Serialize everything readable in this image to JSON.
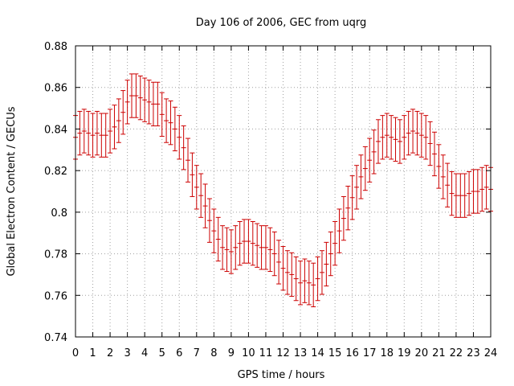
{
  "chart_data": {
    "type": "line",
    "title": "Day 106 of 2006, GEC from uqrg",
    "xlabel": "GPS time / hours",
    "ylabel": "Global Electron Content / GECUs",
    "xlim": [
      0,
      24
    ],
    "ylim": [
      0.74,
      0.88
    ],
    "x_ticks": [
      0,
      1,
      2,
      3,
      4,
      5,
      6,
      7,
      8,
      9,
      10,
      11,
      12,
      13,
      14,
      15,
      16,
      17,
      18,
      19,
      20,
      21,
      22,
      23,
      24
    ],
    "y_ticks": [
      0.74,
      0.76,
      0.78,
      0.8,
      0.82,
      0.84,
      0.86,
      0.88
    ],
    "y_tick_labels": [
      "0.74",
      "0.76",
      "0.78",
      "0.8",
      "0.82",
      "0.84",
      "0.86",
      "0.88"
    ],
    "grid": true,
    "series": [
      {
        "name": "GEC",
        "color": "#cc0000",
        "error": 0.0105,
        "x": [
          0,
          0.25,
          0.5,
          0.75,
          1,
          1.25,
          1.5,
          1.75,
          2,
          2.25,
          2.5,
          2.75,
          3,
          3.25,
          3.5,
          3.75,
          4,
          4.25,
          4.5,
          4.75,
          5,
          5.25,
          5.5,
          5.75,
          6,
          6.25,
          6.5,
          6.75,
          7,
          7.25,
          7.5,
          7.75,
          8,
          8.25,
          8.5,
          8.75,
          9,
          9.25,
          9.5,
          9.75,
          10,
          10.25,
          10.5,
          10.75,
          11,
          11.25,
          11.5,
          11.75,
          12,
          12.25,
          12.5,
          12.75,
          13,
          13.25,
          13.5,
          13.75,
          14,
          14.25,
          14.5,
          14.75,
          15,
          15.25,
          15.5,
          15.75,
          16,
          16.25,
          16.5,
          16.75,
          17,
          17.25,
          17.5,
          17.75,
          18,
          18.25,
          18.5,
          18.75,
          19,
          19.25,
          19.5,
          19.75,
          20,
          20.25,
          20.5,
          20.75,
          21,
          21.25,
          21.5,
          21.75,
          22,
          22.25,
          22.5,
          22.75,
          23,
          23.25,
          23.5,
          23.75,
          24
        ],
        "y": [
          0.836,
          0.838,
          0.839,
          0.838,
          0.837,
          0.838,
          0.837,
          0.837,
          0.839,
          0.841,
          0.844,
          0.848,
          0.853,
          0.856,
          0.856,
          0.855,
          0.854,
          0.853,
          0.852,
          0.852,
          0.847,
          0.844,
          0.843,
          0.84,
          0.836,
          0.831,
          0.825,
          0.818,
          0.812,
          0.808,
          0.803,
          0.796,
          0.791,
          0.787,
          0.783,
          0.782,
          0.781,
          0.783,
          0.785,
          0.786,
          0.786,
          0.785,
          0.784,
          0.783,
          0.783,
          0.782,
          0.78,
          0.776,
          0.773,
          0.771,
          0.77,
          0.768,
          0.766,
          0.767,
          0.766,
          0.765,
          0.768,
          0.771,
          0.775,
          0.78,
          0.785,
          0.791,
          0.797,
          0.802,
          0.807,
          0.812,
          0.817,
          0.821,
          0.825,
          0.829,
          0.834,
          0.836,
          0.837,
          0.836,
          0.835,
          0.834,
          0.836,
          0.838,
          0.839,
          0.838,
          0.837,
          0.836,
          0.833,
          0.828,
          0.822,
          0.817,
          0.813,
          0.809,
          0.808,
          0.808,
          0.808,
          0.809,
          0.81,
          0.81,
          0.811,
          0.812,
          0.811
        ]
      }
    ]
  }
}
